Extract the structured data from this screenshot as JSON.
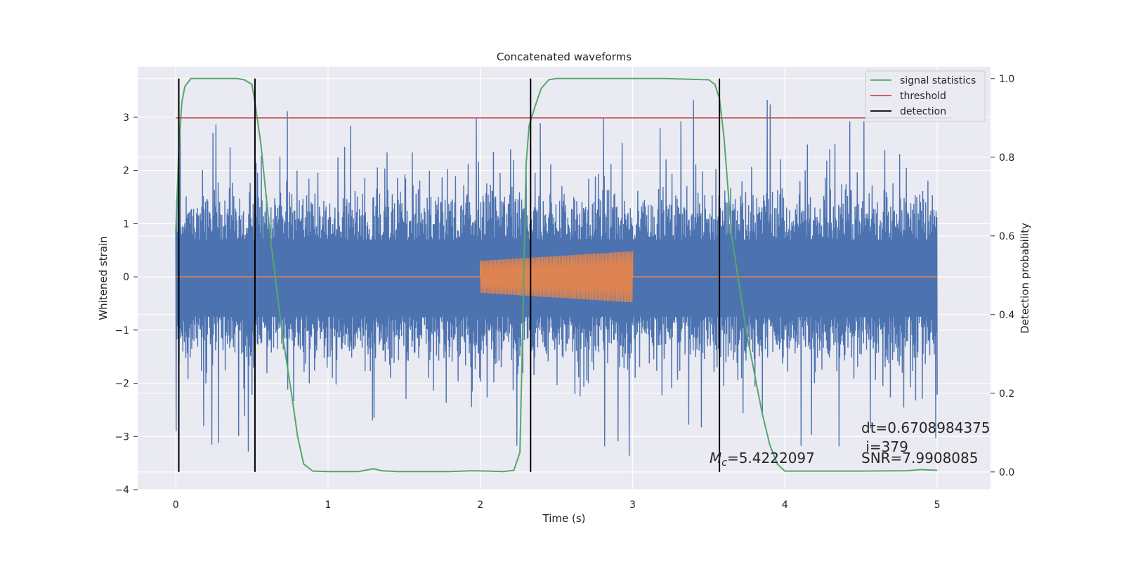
{
  "chart_data": {
    "type": "line",
    "title": "Concatenated waveforms",
    "xlabel": "Time (s)",
    "ylabel": "Whitened strain",
    "y2label": "Detection probability",
    "xlim": [
      -0.25,
      5.35
    ],
    "ylim": [
      -4.0,
      3.95
    ],
    "y2lim": [
      -0.045,
      1.03
    ],
    "xticks": [
      0,
      1,
      2,
      3,
      4,
      5
    ],
    "yticks": [
      -4,
      -3,
      -2,
      -1,
      0,
      1,
      2,
      3
    ],
    "y2ticks": [
      0.0,
      0.2,
      0.4,
      0.6,
      0.8,
      1.0
    ],
    "grid": true,
    "legend_position": "top-right",
    "colors": {
      "noise": "#4c72b0",
      "template": "#dd8452",
      "signal_statistics": "#55a868",
      "threshold": "#c44e52",
      "detection": "#000000",
      "axes_background": "#eaeaf2"
    },
    "whitened_strain": {
      "x_range": [
        0,
        5
      ],
      "samples": 2048,
      "band": [
        -0.75,
        0.7
      ],
      "max": 3.6,
      "min": -3.65
    },
    "template": {
      "x_range": [
        2.0,
        3.0
      ],
      "start_amplitude": 0.3,
      "end_amplitude": 0.48,
      "cycles": 100
    },
    "series": [
      {
        "name": "signal statistics",
        "axis": "right",
        "x": [
          0,
          0.02,
          0.04,
          0.06,
          0.1,
          0.2,
          0.3,
          0.4,
          0.45,
          0.5,
          0.52,
          0.56,
          0.62,
          0.7,
          0.76,
          0.8,
          0.84,
          0.9,
          1.0,
          1.2,
          1.3,
          1.35,
          1.45,
          1.6,
          1.8,
          1.95,
          2.05,
          2.15,
          2.22,
          2.26,
          2.28,
          2.3,
          2.32,
          2.36,
          2.4,
          2.45,
          2.5,
          2.8,
          3.2,
          3.5,
          3.54,
          3.57,
          3.6,
          3.65,
          3.75,
          3.85,
          3.9,
          3.95,
          4.0,
          4.2,
          4.5,
          4.8,
          4.9,
          5.0
        ],
        "y": [
          0.61,
          0.82,
          0.94,
          0.98,
          1.0,
          1.0,
          1.0,
          1.0,
          0.997,
          0.985,
          0.94,
          0.83,
          0.6,
          0.35,
          0.2,
          0.09,
          0.02,
          0.002,
          0.001,
          0.001,
          0.008,
          0.003,
          0.001,
          0.001,
          0.001,
          0.003,
          0.002,
          0.001,
          0.004,
          0.05,
          0.4,
          0.78,
          0.88,
          0.93,
          0.975,
          0.997,
          1.0,
          1.0,
          1.0,
          0.997,
          0.985,
          0.95,
          0.85,
          0.6,
          0.35,
          0.15,
          0.07,
          0.02,
          0.002,
          0.002,
          0.002,
          0.003,
          0.006,
          0.004
        ]
      },
      {
        "name": "threshold",
        "axis": "right",
        "x": [
          0,
          5.1
        ],
        "y": [
          0.9,
          0.9
        ]
      },
      {
        "name": "detection",
        "axis": "right",
        "lines_x": [
          0.02,
          0.52,
          2.33,
          3.57
        ],
        "y_range": [
          0.0,
          1.0
        ]
      }
    ],
    "legend": [
      "signal statistics",
      "threshold",
      "detection"
    ],
    "annotations": {
      "mc_symbol": "M",
      "mc_subscript": "c",
      "mc_value": "=5.4222097",
      "dt": "dt=0.6708984375",
      "i": " i=379",
      "snr": "SNR=7.9908085"
    }
  }
}
